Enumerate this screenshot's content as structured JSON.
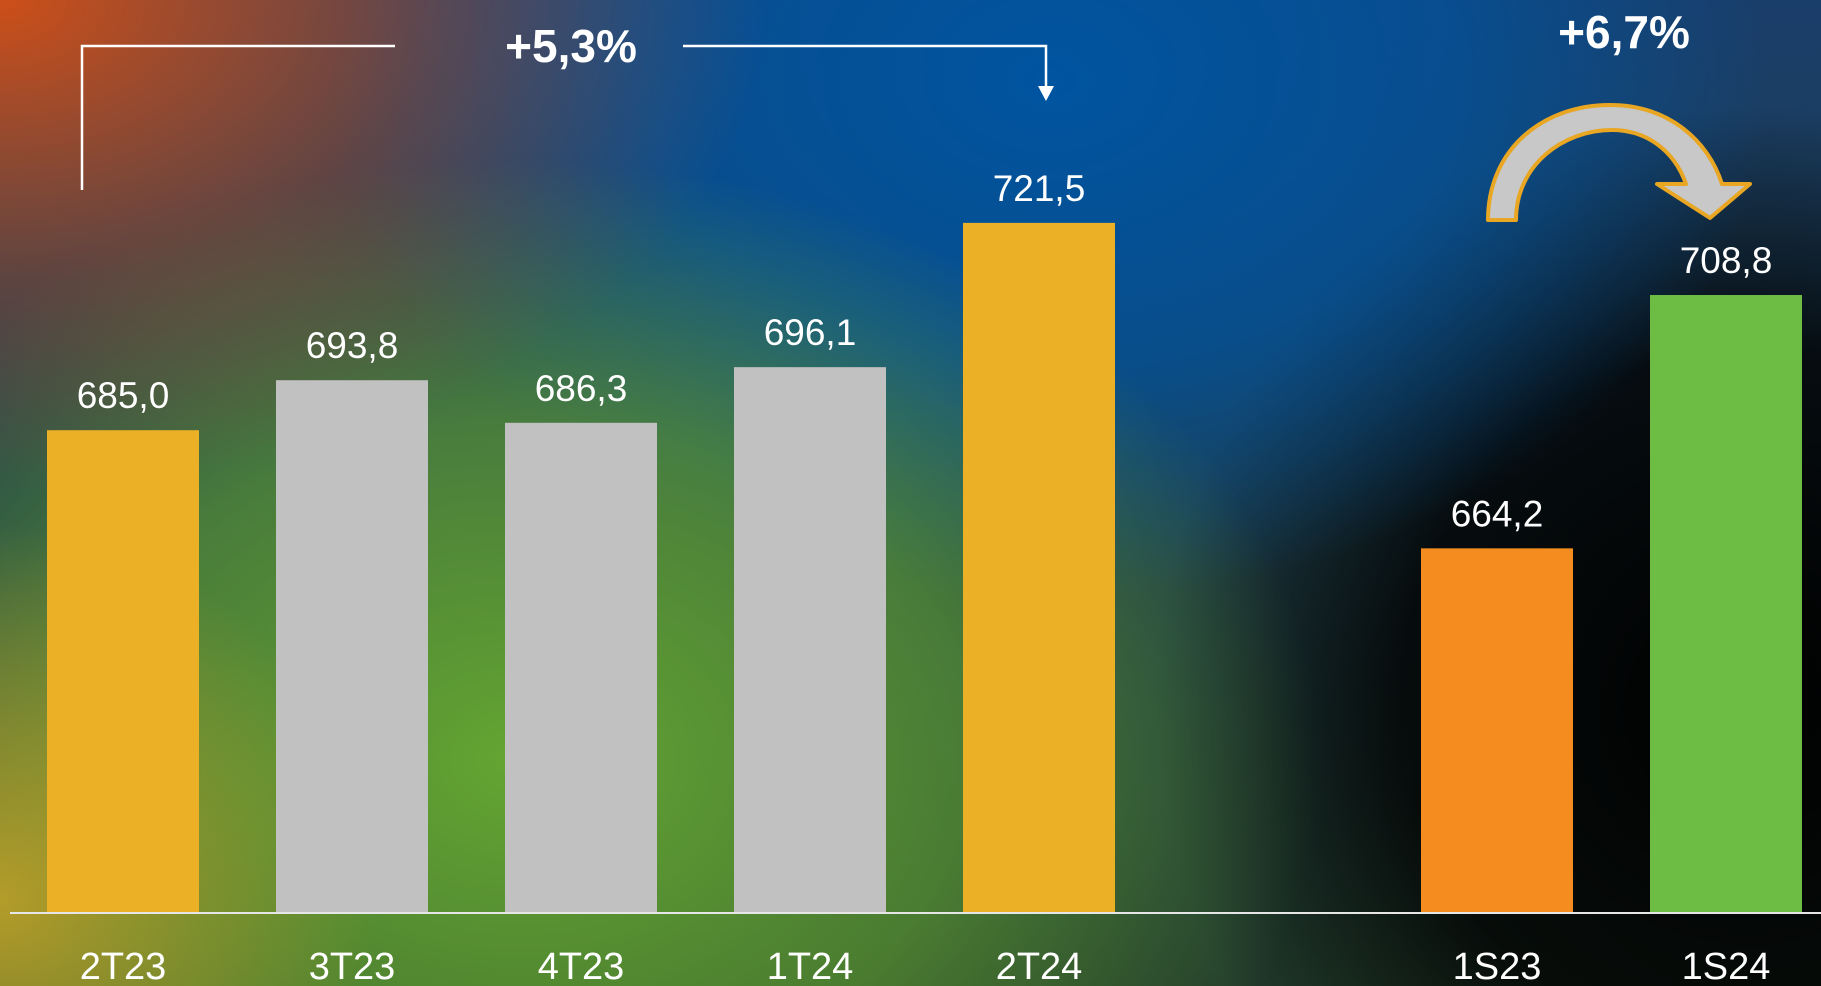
{
  "chart_data": {
    "type": "bar",
    "categories": [
      "2T23",
      "3T23",
      "4T23",
      "1T24",
      "2T24",
      "1S23",
      "1S24"
    ],
    "values": [
      685.0,
      693.8,
      686.3,
      696.1,
      721.5,
      664.2,
      708.8
    ],
    "value_labels": [
      "685,0",
      "693,8",
      "686,3",
      "696,1",
      "721,5",
      "664,2",
      "708,8"
    ],
    "bar_colors": [
      "#EBB026",
      "#C1C1C1",
      "#C1C1C1",
      "#C1C1C1",
      "#EBB026",
      "#F48C20",
      "#6DBD45"
    ],
    "groups": [
      {
        "categories": [
          "2T23",
          "3T23",
          "4T23",
          "1T24",
          "2T24"
        ]
      },
      {
        "categories": [
          "1S23",
          "1S24"
        ]
      }
    ],
    "annotations": [
      {
        "label": "+5,3%",
        "from": "2T23",
        "to": "2T24",
        "style": "bracket-arrow",
        "color": "#FFFFFF"
      },
      {
        "label": "+6,7%",
        "from": "1S23",
        "to": "1S24",
        "style": "curved-arrow",
        "color": "#E8A623"
      }
    ],
    "title": "",
    "xlabel": "",
    "ylabel": "",
    "grid": false,
    "legend": "none"
  },
  "colors": {
    "text": "#FFFFFF",
    "axis_line": "#E6E6E6",
    "arrow_fill": "#C8C8C8",
    "arrow_stroke": "#E8A623"
  }
}
